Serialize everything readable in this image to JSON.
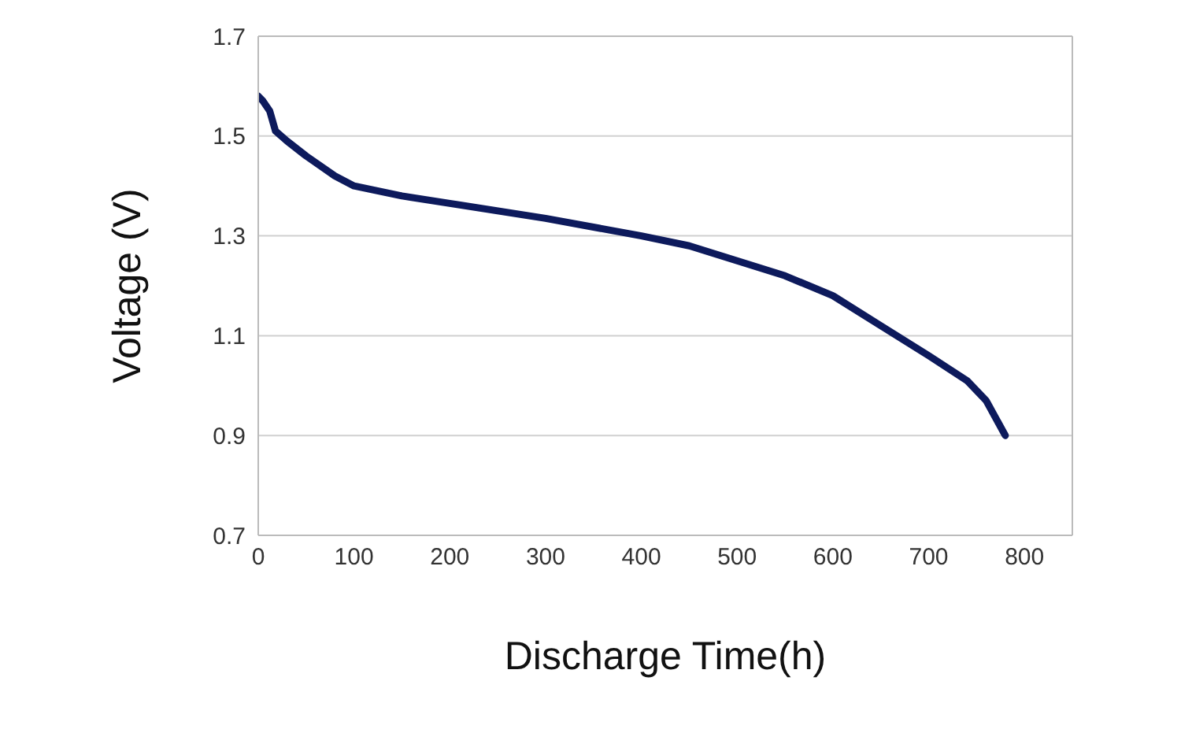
{
  "chart_data": {
    "type": "line",
    "xlabel": "Discharge Time(h)",
    "ylabel": "Voltage (V)",
    "xlim": [
      0,
      850
    ],
    "xticks": [
      0,
      100,
      200,
      300,
      400,
      500,
      600,
      700,
      800
    ],
    "ylim": [
      0.7,
      1.7
    ],
    "yticks": [
      {
        "value": 0.7,
        "label": "0.7"
      },
      {
        "value": 0.9,
        "label": "0.9"
      },
      {
        "value": 1.1,
        "label": "1.1"
      },
      {
        "value": 1.3,
        "label": "1.3"
      },
      {
        "value": 1.5,
        "label": "1.5"
      },
      {
        "value": 1.7,
        "label": "1.7"
      }
    ],
    "grid": "y",
    "legend": false,
    "marker": "none",
    "line_style": "solid",
    "series": [
      {
        "color": "#0d1a5c",
        "x": [
          0,
          5,
          12,
          18,
          30,
          50,
          80,
          100,
          150,
          200,
          300,
          400,
          450,
          500,
          550,
          600,
          650,
          700,
          740,
          760,
          780
        ],
        "values": [
          1.58,
          1.57,
          1.55,
          1.51,
          1.49,
          1.46,
          1.42,
          1.4,
          1.38,
          1.365,
          1.335,
          1.3,
          1.28,
          1.25,
          1.22,
          1.18,
          1.12,
          1.06,
          1.01,
          0.97,
          0.9
        ]
      }
    ]
  }
}
